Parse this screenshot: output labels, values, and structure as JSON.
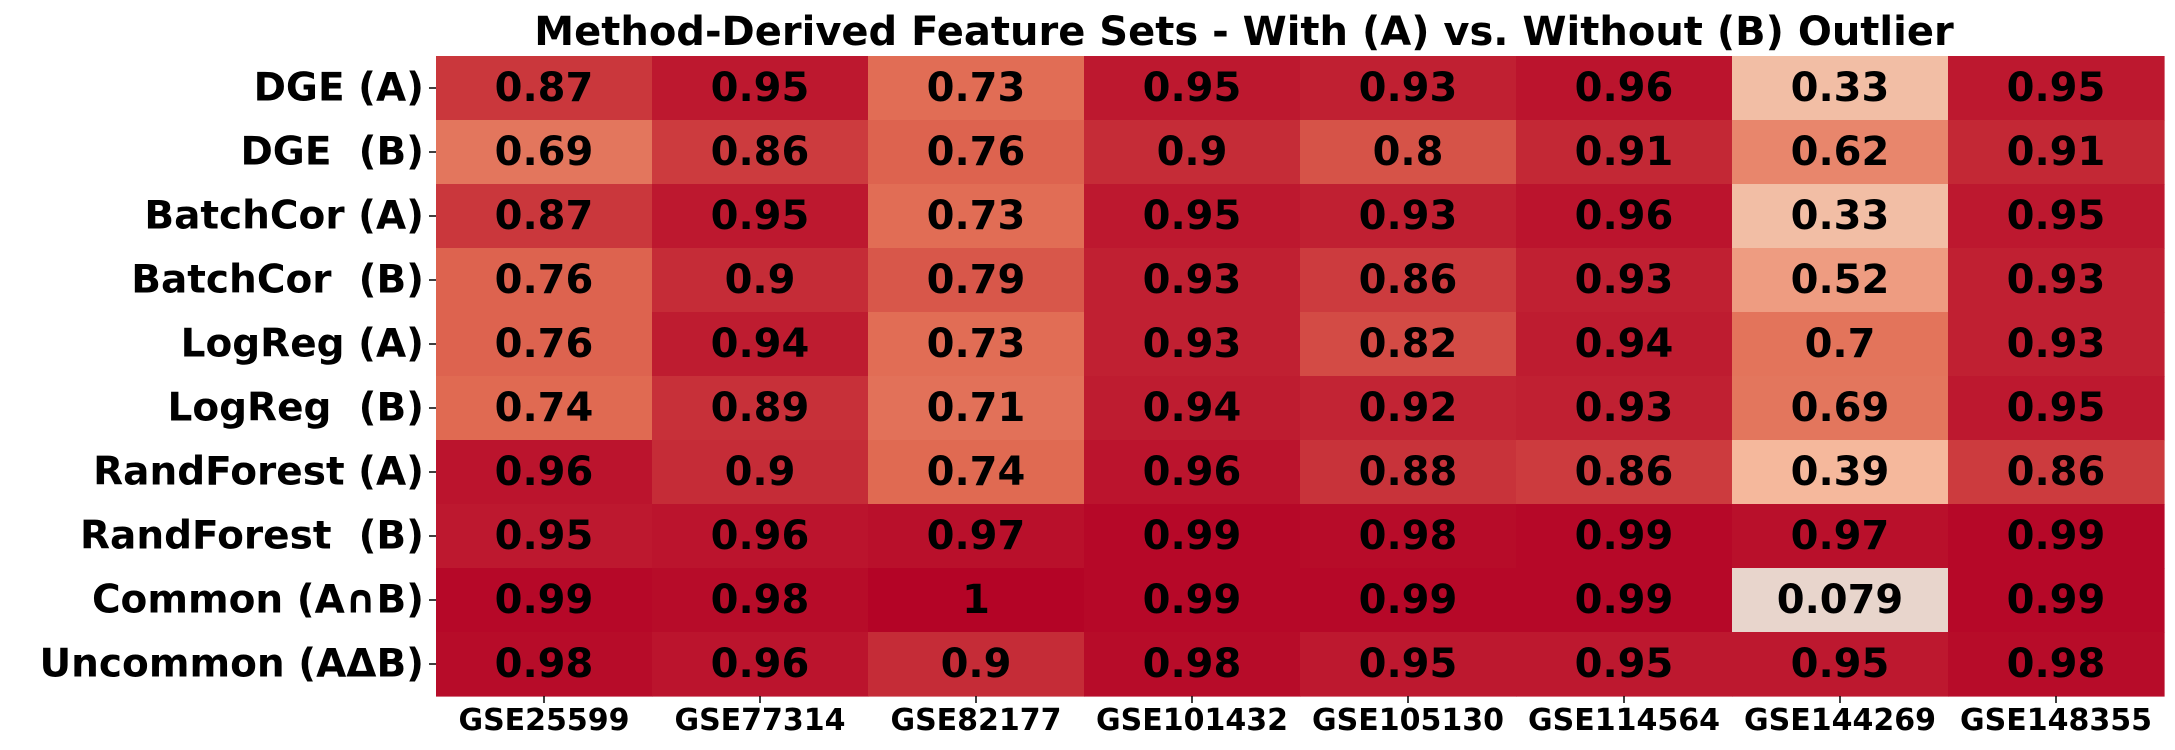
{
  "chart_data": {
    "type": "heatmap",
    "title": "Method-Derived Feature Sets - With (A) vs. Without (B) Outlier",
    "xlabel": "",
    "ylabel": "",
    "columns": [
      "GSE25599",
      "GSE77314",
      "GSE82177",
      "GSE101432",
      "GSE105130",
      "GSE114564",
      "GSE144269",
      "GSE148355"
    ],
    "rows": [
      "DGE (A)",
      "DGE  (B)",
      "BatchCor (A)",
      "BatchCor  (B)",
      "LogReg (A)",
      "LogReg  (B)",
      "RandForest (A)",
      "RandForest  (B)",
      "Common (A∩B)",
      "Uncommon (AΔB)"
    ],
    "values": [
      [
        0.87,
        0.95,
        0.73,
        0.95,
        0.93,
        0.96,
        0.33,
        0.95
      ],
      [
        0.69,
        0.86,
        0.76,
        0.9,
        0.8,
        0.91,
        0.62,
        0.91
      ],
      [
        0.87,
        0.95,
        0.73,
        0.95,
        0.93,
        0.96,
        0.33,
        0.95
      ],
      [
        0.76,
        0.9,
        0.79,
        0.93,
        0.86,
        0.93,
        0.52,
        0.93
      ],
      [
        0.76,
        0.94,
        0.73,
        0.93,
        0.82,
        0.94,
        0.7,
        0.93
      ],
      [
        0.74,
        0.89,
        0.71,
        0.94,
        0.92,
        0.93,
        0.69,
        0.95
      ],
      [
        0.96,
        0.9,
        0.74,
        0.96,
        0.88,
        0.86,
        0.39,
        0.86
      ],
      [
        0.95,
        0.96,
        0.97,
        0.99,
        0.98,
        0.99,
        0.97,
        0.99
      ],
      [
        0.99,
        0.98,
        1,
        0.99,
        0.99,
        0.99,
        0.079,
        0.99
      ],
      [
        0.98,
        0.96,
        0.9,
        0.98,
        0.95,
        0.95,
        0.95,
        0.98
      ]
    ],
    "colormap": "coolwarm (red half)",
    "colors": {
      "low": "#e8d5cc",
      "mid_low": "#f5b79a",
      "mid": "#e06a52",
      "high": "#b40426",
      "text": "#000000"
    },
    "colorbar": false,
    "grid": false,
    "legend": "none"
  }
}
